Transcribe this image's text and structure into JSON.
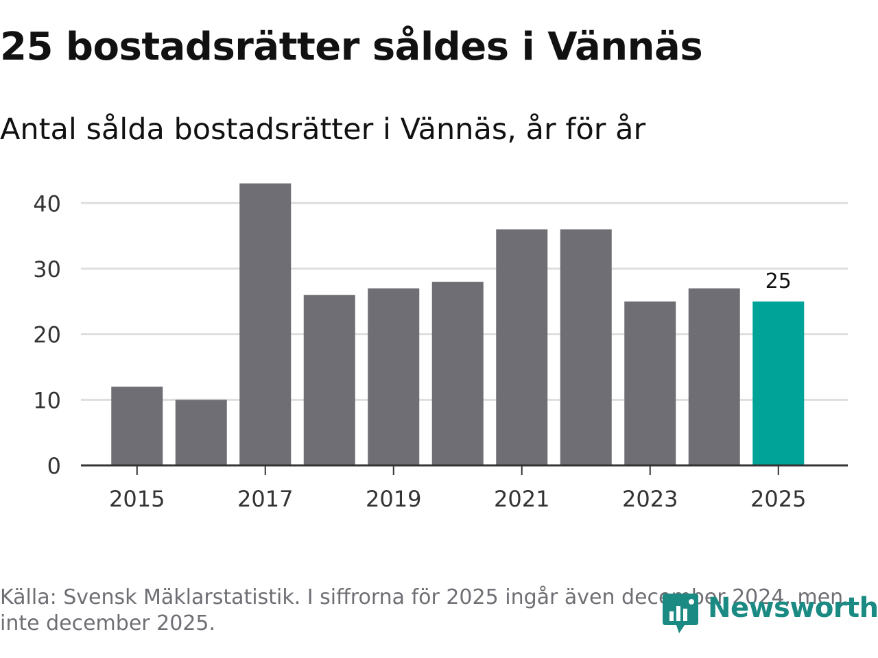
{
  "header": {
    "title": "25 bostadsrätter såldes i Vännäs",
    "subtitle": "Antal sålda bostadsrätter i Vännäs, år för år"
  },
  "chart_data": {
    "type": "bar",
    "title": "25 bostadsrätter såldes i Vännäs",
    "subtitle": "Antal sålda bostadsrätter i Vännäs, år för år",
    "xlabel": "",
    "ylabel": "",
    "categories": [
      "2015",
      "2016",
      "2017",
      "2018",
      "2019",
      "2020",
      "2021",
      "2022",
      "2023",
      "2024",
      "2025"
    ],
    "values": [
      12,
      10,
      43,
      26,
      27,
      28,
      36,
      36,
      25,
      27,
      25
    ],
    "ylim": [
      0,
      44
    ],
    "yticks": [
      0,
      10,
      20,
      30,
      40
    ],
    "xtick_labels": [
      "2015",
      "2017",
      "2019",
      "2021",
      "2023",
      "2025"
    ],
    "highlight_category": "2025",
    "data_labels": [
      {
        "category": "2025",
        "text": "25"
      }
    ],
    "grid": true,
    "colors": {
      "bar": "#6f6e74",
      "highlight": "#00a398",
      "grid": "#dedede",
      "axis": "#333333"
    }
  },
  "footer": {
    "source": "Källa: Svensk Mäklarstatistik. I siffrorna för 2025 ingår även december 2024, men inte december 2025.",
    "logo_text": "Newsworthy",
    "logo_icon": "newsworthy-logo-icon",
    "logo_color": "#1a8a82"
  }
}
